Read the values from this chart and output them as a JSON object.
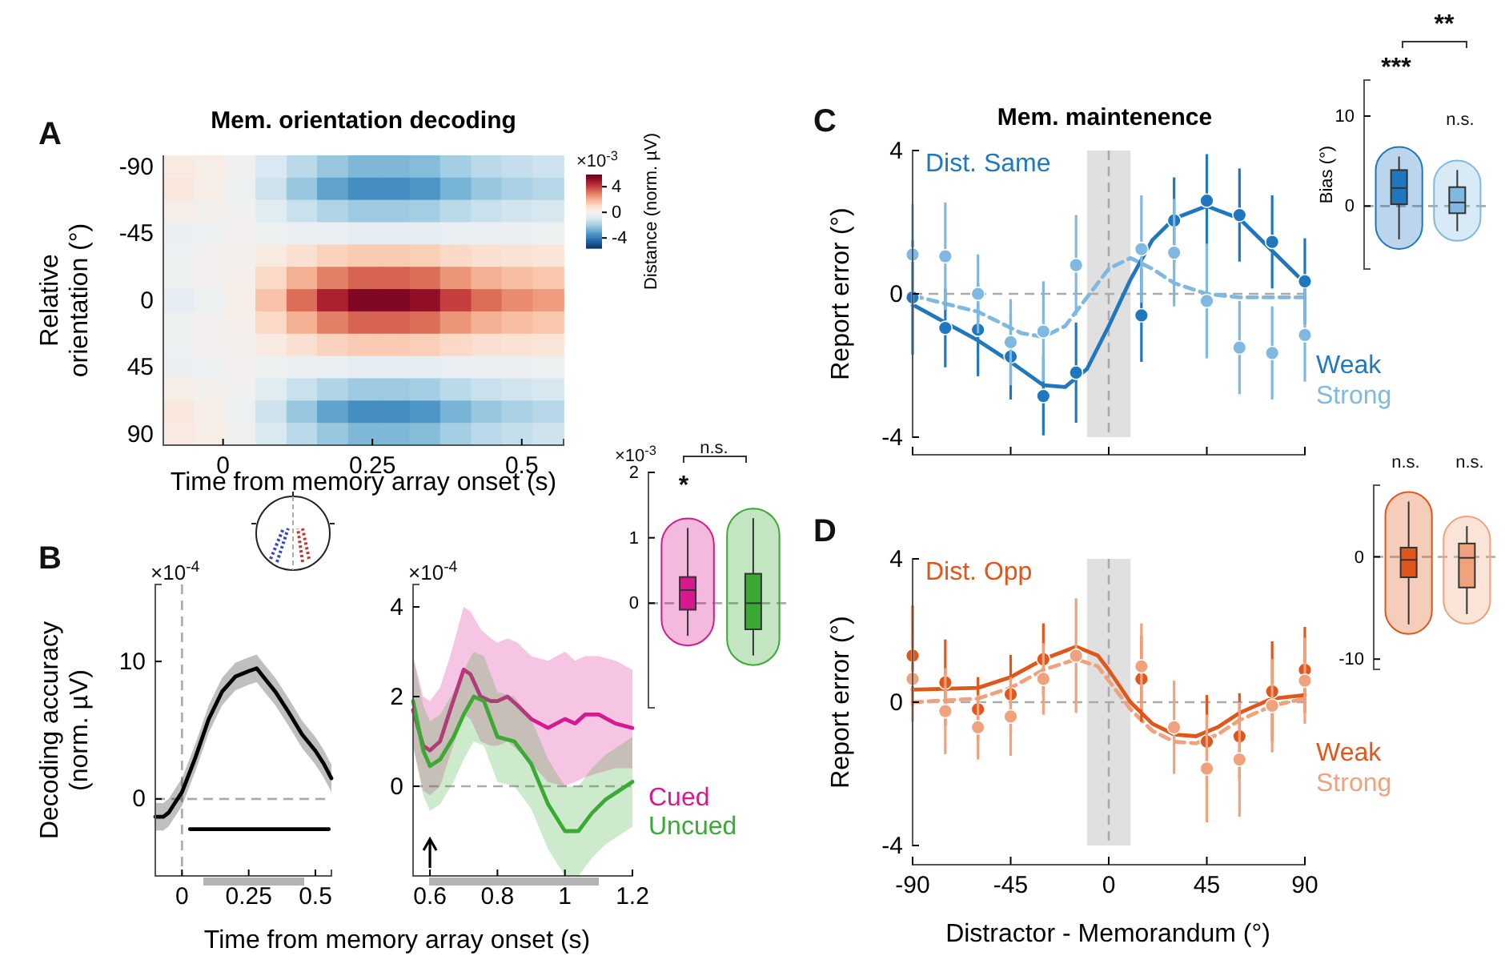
{
  "chart_data": [
    {
      "type": "heatmap",
      "title": "Mem. orientation decoding",
      "xlabel": "Time from memory array onset (s)",
      "ylabel": "Relative orientation (°)",
      "clabel": "Distance (norm. µV)",
      "annotations": [
        "A",
        "×10$^{-3}$"
      ],
      "x": [
        -0.074,
        -0.023,
        0.029,
        0.08,
        0.132,
        0.183,
        0.235,
        0.286,
        0.338,
        0.389,
        0.441,
        0.492,
        0.544
      ],
      "y_categories": [
        "-90",
        null,
        null,
        "-45",
        null,
        null,
        "0",
        null,
        null,
        "45",
        null,
        null,
        "90"
      ],
      "xlim": [
        -0.1,
        0.57
      ],
      "xticks": [
        0,
        0.25,
        0.5
      ],
      "clim": [
        -5.6,
        5.9
      ],
      "cticks": [
        -4,
        0,
        4
      ],
      "cells": [
        [
          0.5,
          0.3,
          -0.1,
          -0.8,
          -1.5,
          -2.1,
          -2.5,
          -2.5,
          -2.4,
          -1.9,
          -1.5,
          -1.3,
          -1.1
        ],
        [
          0.6,
          0.3,
          -0.2,
          -1.1,
          -2.1,
          -3,
          -3.5,
          -3.5,
          -3.3,
          -2.6,
          -2.1,
          -1.8,
          -1.6
        ],
        [
          0.3,
          0.1,
          -0.1,
          -0.6,
          -1.2,
          -1.7,
          -2,
          -2,
          -1.9,
          -1.5,
          -1.2,
          -1,
          -0.9
        ],
        [
          -0.3,
          -0.2,
          0,
          -0.2,
          -0.3,
          -0.4,
          -0.5,
          -0.5,
          -0.5,
          -0.4,
          -0.3,
          -0.3,
          -0.2
        ],
        [
          -0.2,
          0,
          0.1,
          0.5,
          0.9,
          1.3,
          1.5,
          1.5,
          1.4,
          1.1,
          0.9,
          0.8,
          0.7
        ],
        [
          -0.2,
          0,
          0.2,
          1.1,
          2.1,
          3,
          3.5,
          3.5,
          3.3,
          2.6,
          2.1,
          1.8,
          1.6
        ],
        [
          -0.5,
          -0.2,
          0.3,
          1.7,
          3.3,
          4.7,
          5.5,
          5.5,
          5.2,
          4.1,
          3.3,
          2.8,
          2.5
        ],
        [
          -0.2,
          0,
          0.2,
          1.1,
          2.1,
          3,
          3.5,
          3.5,
          3.3,
          2.6,
          2.1,
          1.8,
          1.6
        ],
        [
          -0.2,
          0,
          0.1,
          0.5,
          0.9,
          1.3,
          1.5,
          1.5,
          1.4,
          1.1,
          0.9,
          0.8,
          0.7
        ],
        [
          -0.3,
          -0.2,
          0,
          -0.2,
          -0.3,
          -0.4,
          -0.5,
          -0.5,
          -0.5,
          -0.4,
          -0.3,
          -0.3,
          -0.2
        ],
        [
          0.3,
          0.1,
          -0.1,
          -0.6,
          -1.2,
          -1.7,
          -2,
          -2,
          -1.9,
          -1.5,
          -1.2,
          -1,
          -0.9
        ],
        [
          0.6,
          0.3,
          -0.2,
          -1.1,
          -2.1,
          -3,
          -3.5,
          -3.5,
          -3.3,
          -2.6,
          -2.1,
          -1.8,
          -1.6
        ],
        [
          0.5,
          0.3,
          -0.1,
          -0.8,
          -1.5,
          -2.1,
          -2.5,
          -2.5,
          -2.4,
          -1.9,
          -1.5,
          -1.3,
          -1.1
        ]
      ]
    },
    {
      "type": "line",
      "xlabel": "Time from memory array onset (s)",
      "ylabel": "Decoding accuracy (norm. µV)",
      "annotations": [
        "B",
        "×10$^{-4}$"
      ],
      "xlim": [
        -0.1,
        0.56
      ],
      "xticks": [
        0,
        0.25,
        0.5
      ],
      "ylim": [
        -5.6,
        15.6
      ],
      "yticks": [
        0,
        10
      ],
      "ref_lines": [
        {
          "axis": "x",
          "value": 0,
          "color": "#aaaaaa",
          "line_style": "dashed"
        },
        {
          "axis": "y",
          "value": 0,
          "color": "#aaaaaa",
          "line_style": "dashed"
        }
      ],
      "series": [
        {
          "color": "#000000",
          "x": [
            -0.1,
            -0.07,
            -0.05,
            0,
            0.05,
            0.1,
            0.15,
            0.2,
            0.25,
            0.28,
            0.3,
            0.35,
            0.4,
            0.45,
            0.5,
            0.53,
            0.56
          ],
          "values": [
            -1.3,
            -1.3,
            -1,
            0.5,
            3,
            5.8,
            7.8,
            8.9,
            9.3,
            9.5,
            9,
            7.8,
            6.3,
            4.7,
            3.5,
            2.6,
            1.5
          ],
          "lower": [
            -2.3,
            -2.3,
            -2,
            -0.5,
            2,
            4.8,
            6.8,
            7.9,
            8.3,
            8.5,
            8,
            6.8,
            5.3,
            3.7,
            2.5,
            1.6,
            0.5
          ],
          "upper": [
            -0.3,
            -0.3,
            0,
            1.5,
            4,
            6.8,
            8.8,
            9.9,
            10.3,
            10.5,
            10,
            8.8,
            7.3,
            5.7,
            4.5,
            3.6,
            2.5
          ]
        },
        {
          "color": "#000000",
          "x": [
            0.03,
            0.55
          ],
          "values": [
            -2.2,
            -2.2
          ]
        }
      ]
    },
    {
      "type": "line",
      "legend": "right",
      "xlim": [
        0.55,
        1.2
      ],
      "xticks": [
        0.6,
        0.8,
        1,
        1.2
      ],
      "ylim": [
        -2,
        4.5
      ],
      "yticks": [
        0,
        2,
        4
      ],
      "annotations": [
        "×10$^{-4}$"
      ],
      "ref_lines": [
        {
          "axis": "y",
          "value": 0,
          "color": "#aaaaaa",
          "line_style": "dashed"
        }
      ],
      "series": [
        {
          "name": "Cued",
          "color": "#d6198f",
          "x": [
            0.55,
            0.58,
            0.6,
            0.63,
            0.66,
            0.7,
            0.72,
            0.75,
            0.78,
            0.8,
            0.83,
            0.86,
            0.9,
            0.95,
            1,
            1.03,
            1.06,
            1.1,
            1.15,
            1.2
          ],
          "values": [
            1.7,
            0.9,
            0.8,
            1,
            1.7,
            2.6,
            2.5,
            2,
            1.9,
            1.9,
            2,
            1.8,
            1.5,
            1.3,
            1.5,
            1.4,
            1.6,
            1.6,
            1.4,
            1.3
          ],
          "lower": [
            0.9,
            -0.1,
            -0.2,
            0,
            0.7,
            1.6,
            1.5,
            1,
            0.9,
            0.9,
            1,
            0.8,
            0.5,
            0.1,
            0,
            0.1,
            0.2,
            0.3,
            0.4,
            0.4
          ],
          "upper": [
            2.9,
            2,
            1.9,
            2.2,
            2.9,
            4,
            3.9,
            3.5,
            3.3,
            3.2,
            3.3,
            3.2,
            2.9,
            2.8,
            3,
            2.8,
            2.9,
            2.9,
            2.8,
            2.6
          ]
        },
        {
          "name": "Uncued",
          "color": "#3aaa35",
          "x": [
            0.55,
            0.58,
            0.6,
            0.63,
            0.67,
            0.7,
            0.73,
            0.76,
            0.8,
            0.85,
            0.9,
            0.95,
            1,
            1.04,
            1.08,
            1.12,
            1.2
          ],
          "values": [
            1.9,
            0.8,
            0.45,
            0.6,
            1.1,
            1.6,
            2,
            1.9,
            1.1,
            1,
            0.5,
            -0.4,
            -1,
            -1,
            -0.6,
            -0.3,
            0.1
          ],
          "lower": [
            0.9,
            -0.2,
            -0.55,
            -0.4,
            0.1,
            0.6,
            1,
            0.9,
            0.1,
            0,
            -0.5,
            -1.4,
            -2,
            -2,
            -1.6,
            -1.3,
            -0.9
          ],
          "upper": [
            2.9,
            1.8,
            1.45,
            1.6,
            2.1,
            2.6,
            3,
            2.9,
            2.1,
            2,
            1.5,
            0.6,
            0,
            0,
            0.4,
            0.7,
            1.1
          ]
        }
      ]
    },
    {
      "type": "box",
      "categories": [
        null,
        null
      ],
      "colors": [
        "#d6198f",
        "#3aaa35"
      ],
      "ylim": [
        -1.6,
        2
      ],
      "yticks": [
        0,
        1,
        2
      ],
      "annotations": [
        "×10$^{-3}$",
        "*",
        "n.s."
      ],
      "ref_lines": [
        {
          "axis": "y",
          "value": 0,
          "color": "#aaaaaa",
          "line_style": "dashed"
        }
      ],
      "boxes": [
        {
          "low": -0.5,
          "q1": -0.1,
          "median": 0.2,
          "q3": 0.4,
          "high": 1.15
        },
        {
          "low": -0.8,
          "q1": -0.4,
          "median": 0,
          "q3": 0.45,
          "high": 1.3
        }
      ]
    },
    {
      "type": "scatter",
      "title": "Mem. maintenence",
      "ylabel": "Report error (°)",
      "legend": "right",
      "tick_labels": "y",
      "annotations": [
        "C",
        "Dist. Same"
      ],
      "xlim": [
        -90,
        90
      ],
      "xticks": [
        {
          "value": -90,
          "label": null
        },
        {
          "value": -45,
          "label": null
        },
        {
          "value": 0,
          "label": null
        },
        {
          "value": 45,
          "label": null
        },
        {
          "value": 90,
          "label": null
        }
      ],
      "ylim": [
        -4,
        4
      ],
      "yticks": [
        -4,
        0,
        4
      ],
      "ref_lines": [
        {
          "axis": "y",
          "value": 0,
          "color": "#aaaaaa",
          "line_style": "dashed"
        },
        {
          "axis": "x",
          "value": 0,
          "color": "#aaaaaa",
          "line_style": "dashed"
        }
      ],
      "bands": [
        {
          "axis": "x",
          "from": -10,
          "to": 10,
          "color": "#e0e0e0"
        }
      ],
      "series": [
        {
          "type": "line",
          "color": "#7fb8e0",
          "line_style": "dashed",
          "x": [
            -90,
            -60,
            -40,
            -30,
            -20,
            -10,
            0,
            10,
            20,
            30,
            45,
            60,
            75,
            90
          ],
          "values": [
            -0.05,
            -0.5,
            -1.1,
            -1.2,
            -0.9,
            -0.1,
            0.7,
            1,
            0.7,
            0.3,
            0,
            -0.1,
            -0.1,
            -0.1
          ]
        },
        {
          "type": "line",
          "color": "#1f77c0",
          "line_style": "solid",
          "x": [
            -90,
            -75,
            -60,
            -45,
            -30,
            -20,
            -10,
            0,
            10,
            20,
            30,
            45,
            60,
            75,
            90
          ],
          "values": [
            -0.3,
            -0.8,
            -1.3,
            -1.9,
            -2.55,
            -2.6,
            -2.1,
            -0.9,
            0.4,
            1.5,
            2.1,
            2.45,
            2.1,
            1.2,
            0.3
          ]
        },
        {
          "name": "Weak",
          "color": "#1f77c0",
          "marker": "circle",
          "x": [
            -90,
            -75,
            -60,
            -45,
            -30,
            -15,
            15,
            30,
            45,
            60,
            75,
            90
          ],
          "values": [
            -0.1,
            -0.95,
            -1,
            -1.75,
            -2.85,
            -2.2,
            -0.6,
            2.05,
            2.6,
            2.2,
            1.45,
            0.35
          ],
          "errors": [
            1.6,
            1.1,
            1.3,
            1.2,
            1.1,
            1.4,
            1.3,
            1.2,
            1.3,
            1.3,
            1.3,
            1.2
          ]
        },
        {
          "name": "Strong",
          "color": "#7fb8e0",
          "marker": "circle",
          "x": [
            -90,
            -75,
            -60,
            -45,
            -30,
            -15,
            15,
            30,
            45,
            60,
            75,
            90
          ],
          "values": [
            1.1,
            1.05,
            0,
            -1.35,
            -1.05,
            0.8,
            1.25,
            1.15,
            -0.2,
            -1.5,
            -1.65,
            -1.15
          ],
          "errors": [
            1.4,
            1.5,
            1.1,
            1.2,
            1.4,
            1.4,
            1.5,
            1.5,
            1.6,
            1.3,
            1.3,
            1.3
          ]
        }
      ]
    },
    {
      "type": "box",
      "categories": [
        null,
        null
      ],
      "colors": [
        "#1f77c0",
        "#7fb8e0"
      ],
      "ylabel": "Bias (°)",
      "ylim": [
        -7,
        14
      ],
      "yticks": [
        0,
        10
      ],
      "annotations": [
        "***",
        "**",
        "n.s."
      ],
      "ref_lines": [
        {
          "axis": "y",
          "value": 0,
          "color": "#aaaaaa",
          "line_style": "dashed"
        }
      ],
      "boxes": [
        {
          "low": -3.7,
          "q1": 0.2,
          "median": 2,
          "q3": 4,
          "high": 5.5
        },
        {
          "low": -2.8,
          "q1": -0.8,
          "median": 0.4,
          "q3": 2.1,
          "high": 4
        }
      ]
    },
    {
      "type": "scatter",
      "xlabel": "Distractor - Memorandum (°)",
      "ylabel": "Report error (°)",
      "legend": "right",
      "annotations": [
        "D",
        "Dist. Opp"
      ],
      "xlim": [
        -90,
        90
      ],
      "xticks": [
        -90,
        -45,
        0,
        45,
        90
      ],
      "ylim": [
        -4,
        4
      ],
      "yticks": [
        -4,
        0,
        4
      ],
      "ref_lines": [
        {
          "axis": "y",
          "value": 0,
          "color": "#aaaaaa",
          "line_style": "dashed"
        },
        {
          "axis": "x",
          "value": 0,
          "color": "#aaaaaa",
          "line_style": "dashed"
        }
      ],
      "bands": [
        {
          "axis": "x",
          "from": -10,
          "to": 10,
          "color": "#e0e0e0"
        }
      ],
      "series": [
        {
          "type": "line",
          "color": "#f0a27c",
          "line_style": "dashed",
          "x": [
            -90,
            -60,
            -45,
            -30,
            -15,
            -5,
            0,
            10,
            20,
            30,
            40,
            50,
            60,
            75,
            90
          ],
          "values": [
            0,
            0.1,
            0.4,
            0.9,
            1.2,
            1,
            0.6,
            -0.2,
            -0.8,
            -1.1,
            -1.15,
            -0.9,
            -0.5,
            -0.1,
            0.1
          ]
        },
        {
          "type": "line",
          "color": "#e0561b",
          "line_style": "solid",
          "x": [
            -90,
            -60,
            -45,
            -30,
            -15,
            -5,
            0,
            10,
            20,
            30,
            40,
            50,
            60,
            75,
            90
          ],
          "values": [
            0.35,
            0.4,
            0.7,
            1.2,
            1.55,
            1.3,
            0.9,
            0,
            -0.6,
            -0.9,
            -0.95,
            -0.7,
            -0.3,
            0.1,
            0.2
          ]
        },
        {
          "name": "Weak",
          "color": "#e0561b",
          "marker": "circle",
          "x": [
            -90,
            -75,
            -60,
            -45,
            -30,
            -15,
            15,
            30,
            45,
            60,
            75,
            90
          ],
          "values": [
            1.3,
            0.55,
            -0.2,
            0.22,
            1.2,
            null,
            0.65,
            null,
            -1.1,
            -0.95,
            0.3,
            0.9
          ],
          "errors": [
            1.4,
            1.2,
            0.9,
            1.1,
            1,
            null,
            1.2,
            null,
            1.3,
            1.2,
            1.4,
            1.2
          ]
        },
        {
          "name": "Strong",
          "color": "#f0a27c",
          "marker": "circle",
          "x": [
            -90,
            -75,
            -60,
            -45,
            -30,
            -15,
            15,
            30,
            45,
            60,
            75,
            90
          ],
          "values": [
            0.65,
            -0.25,
            -0.7,
            -0.4,
            0.65,
            1.3,
            1,
            -0.7,
            -1.85,
            -1.6,
            -0.1,
            0.6
          ],
          "errors": [
            1.2,
            1.2,
            0.9,
            1.1,
            1,
            1.6,
            1.2,
            1.3,
            1.5,
            1.6,
            1.3,
            1.2
          ]
        }
      ]
    },
    {
      "type": "box",
      "categories": [
        null,
        null
      ],
      "colors": [
        "#e0561b",
        "#f0a27c"
      ],
      "ylim": [
        -11,
        7
      ],
      "yticks": [
        -10,
        0
      ],
      "annotations": [
        "n.s.",
        "n.s."
      ],
      "ref_lines": [
        {
          "axis": "y",
          "value": 0,
          "color": "#aaaaaa",
          "line_style": "dashed"
        }
      ],
      "boxes": [
        {
          "low": -6.6,
          "q1": -2,
          "median": -0.3,
          "q3": 0.9,
          "high": 5.4
        },
        {
          "low": -5.6,
          "q1": -3,
          "median": -0.1,
          "q3": 1.3,
          "high": 3
        }
      ]
    }
  ]
}
